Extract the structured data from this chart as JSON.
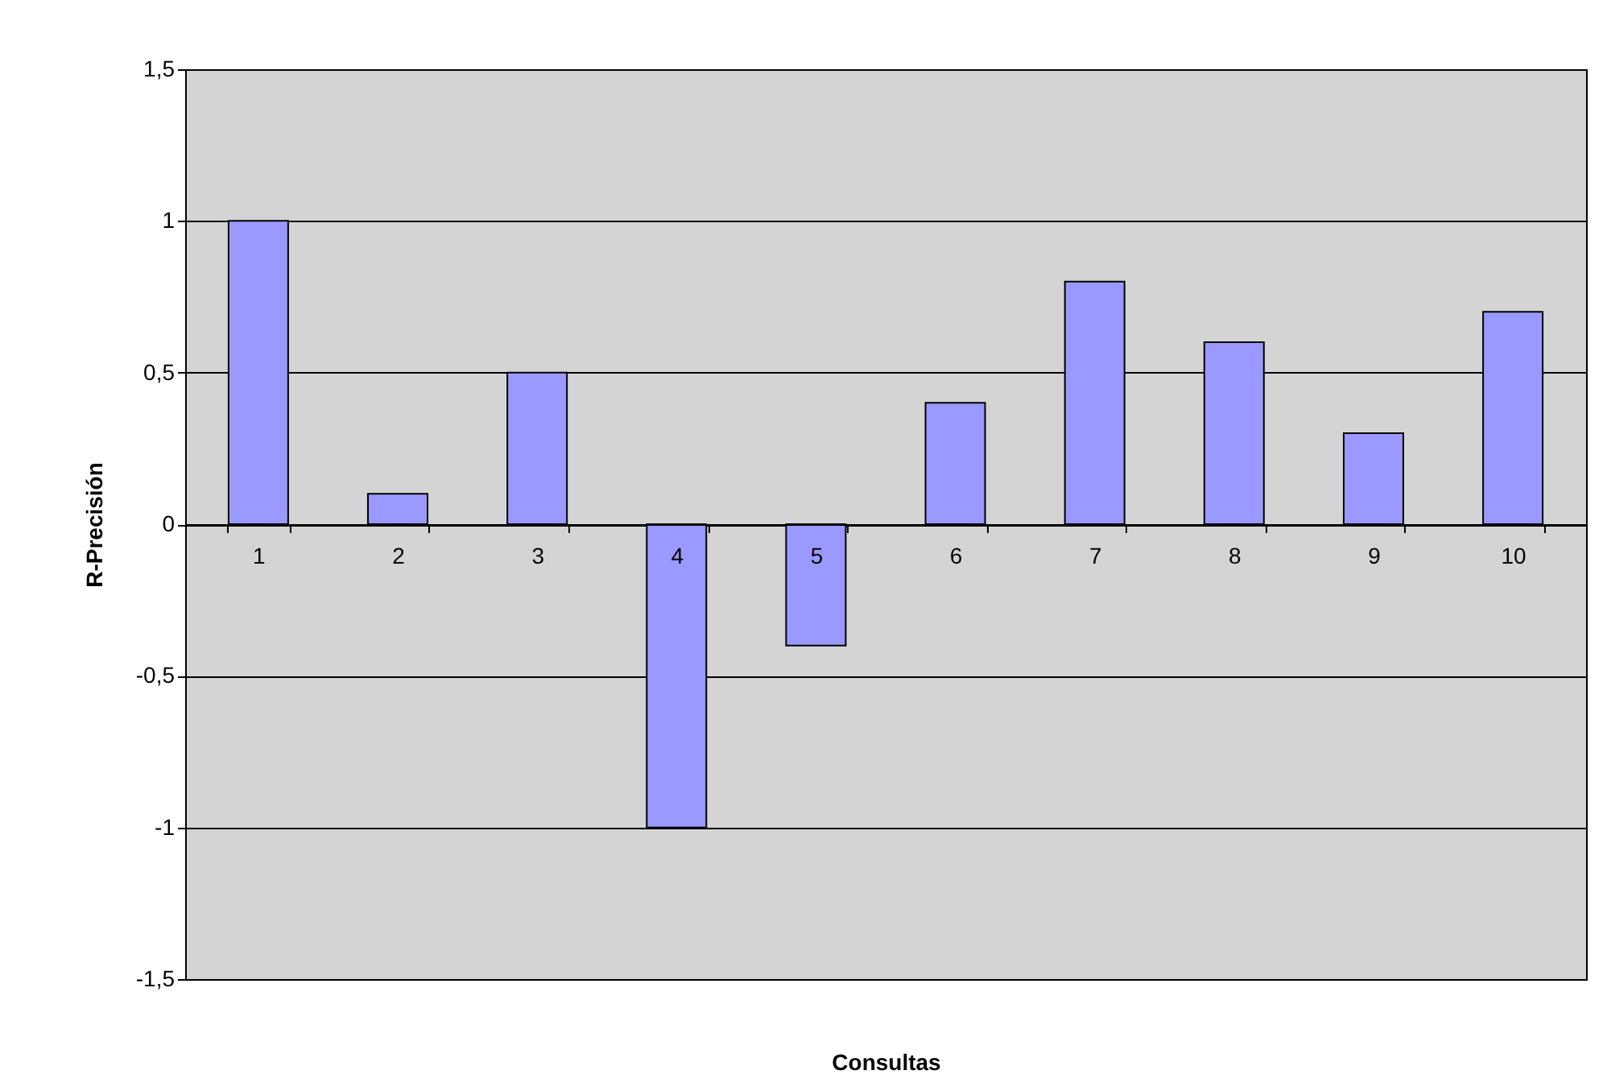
{
  "chart_data": {
    "type": "bar",
    "xlabel": "Consultas",
    "ylabel": "R-Precisión",
    "categories": [
      "1",
      "2",
      "3",
      "4",
      "5",
      "6",
      "7",
      "8",
      "9",
      "10"
    ],
    "values": [
      1,
      0.1,
      0.5,
      -1,
      -0.4,
      0.4,
      0.8,
      0.6,
      0.3,
      0.7
    ],
    "color": "#9999ff",
    "ylim": [
      -1.5,
      1.5
    ],
    "yticks": [
      {
        "value": -1.5,
        "label": "-1,5"
      },
      -1,
      {
        "value": -0.5,
        "label": "-0,5"
      },
      0,
      {
        "value": 0.5,
        "label": "0,5"
      },
      1,
      {
        "value": 1.5,
        "label": "1,5"
      }
    ],
    "grid": "y"
  }
}
